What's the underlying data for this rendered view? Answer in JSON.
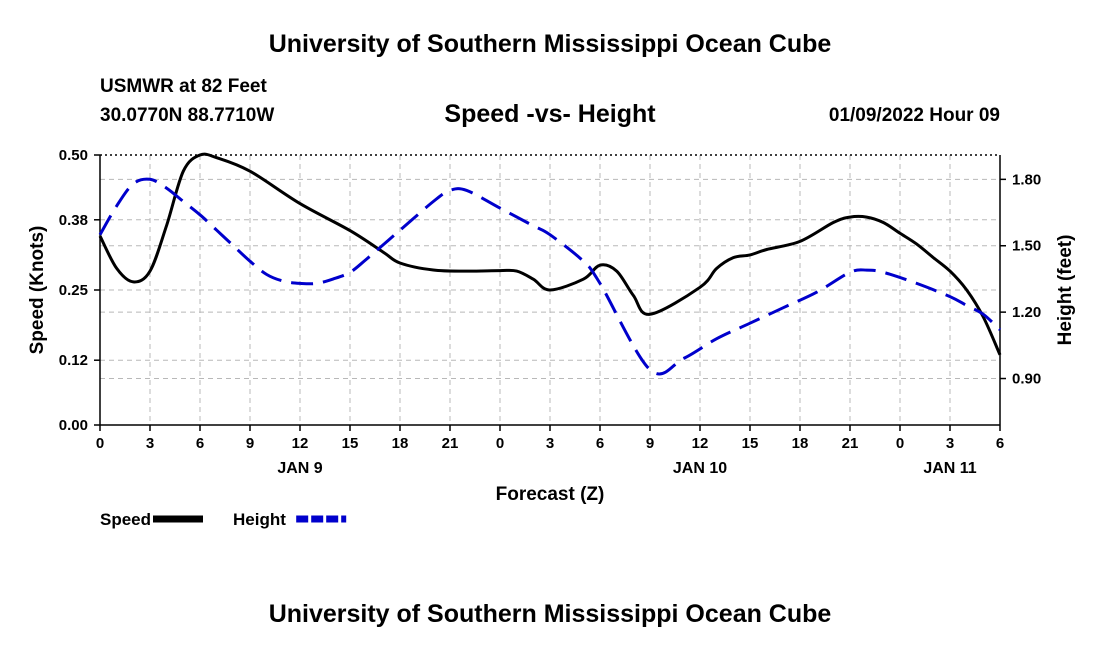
{
  "header": {
    "title": "University of Southern Mississippi Ocean Cube",
    "station": "USMWR at 82 Feet",
    "coords": "30.0770N  88.7710W",
    "subtitle": "Speed -vs- Height",
    "datetime": "01/09/2022 Hour 09"
  },
  "footer": {
    "title": "University of Southern Mississippi Ocean Cube"
  },
  "chart_data": {
    "type": "line",
    "title": "Speed -vs- Height",
    "xlabel": "Forecast (Z)",
    "ylabel": "Speed (Knots)",
    "y2label": "Height (feet)",
    "xlim": [
      0,
      54
    ],
    "x_tick_labels": [
      "0",
      "3",
      "6",
      "9",
      "12",
      "15",
      "18",
      "21",
      "0",
      "3",
      "6",
      "9",
      "12",
      "15",
      "18",
      "21",
      "0",
      "3",
      "6"
    ],
    "day_labels": [
      {
        "text": "JAN 9",
        "x": 12
      },
      {
        "text": "JAN 10",
        "x": 36
      },
      {
        "text": "JAN 11",
        "x": 51
      }
    ],
    "y_ticks": [
      "0.00",
      "0.12",
      "0.25",
      "0.38",
      "0.50"
    ],
    "ylim": [
      0,
      0.5
    ],
    "y2_ticks": [
      "0.90",
      "1.20",
      "1.50",
      "1.80"
    ],
    "y2lim": [
      0.69,
      1.91
    ],
    "grid": true,
    "legend": "bottom-left",
    "series": [
      {
        "name": "Speed",
        "axis": "left",
        "color": "#000000",
        "dash": "solid",
        "x": [
          0,
          1,
          2,
          3,
          4,
          5,
          6,
          7,
          9,
          12,
          15,
          17,
          18,
          20,
          22,
          24,
          25,
          26,
          27,
          29,
          30,
          31,
          32,
          33,
          36,
          37,
          38,
          39,
          40,
          42,
          44,
          45,
          46,
          47,
          48,
          49,
          50,
          51,
          52,
          53,
          54
        ],
        "values": [
          0.35,
          0.29,
          0.265,
          0.285,
          0.37,
          0.47,
          0.5,
          0.495,
          0.47,
          0.41,
          0.36,
          0.32,
          0.3,
          0.287,
          0.285,
          0.286,
          0.285,
          0.27,
          0.25,
          0.27,
          0.296,
          0.285,
          0.24,
          0.205,
          0.255,
          0.29,
          0.31,
          0.315,
          0.325,
          0.34,
          0.375,
          0.385,
          0.385,
          0.375,
          0.355,
          0.335,
          0.31,
          0.285,
          0.25,
          0.2,
          0.13
        ]
      },
      {
        "name": "Height",
        "axis": "right",
        "color": "#0000cc",
        "dash": "dashed",
        "x": [
          0,
          1,
          2,
          3,
          4,
          5,
          6,
          7,
          8,
          9,
          10,
          11,
          12,
          13,
          14,
          15,
          16,
          18,
          20,
          21,
          22,
          24,
          26,
          27,
          29,
          30,
          33,
          35,
          37,
          39,
          41,
          43,
          45,
          46,
          47,
          49,
          51,
          52,
          53,
          54
        ],
        "values": [
          1.55,
          1.68,
          1.78,
          1.8,
          1.76,
          1.7,
          1.64,
          1.57,
          1.5,
          1.43,
          1.37,
          1.34,
          1.33,
          1.33,
          1.35,
          1.38,
          1.44,
          1.57,
          1.7,
          1.75,
          1.75,
          1.67,
          1.59,
          1.55,
          1.43,
          1.33,
          0.94,
          0.99,
          1.08,
          1.15,
          1.22,
          1.29,
          1.38,
          1.39,
          1.38,
          1.33,
          1.27,
          1.23,
          1.19,
          1.12
        ]
      }
    ]
  }
}
